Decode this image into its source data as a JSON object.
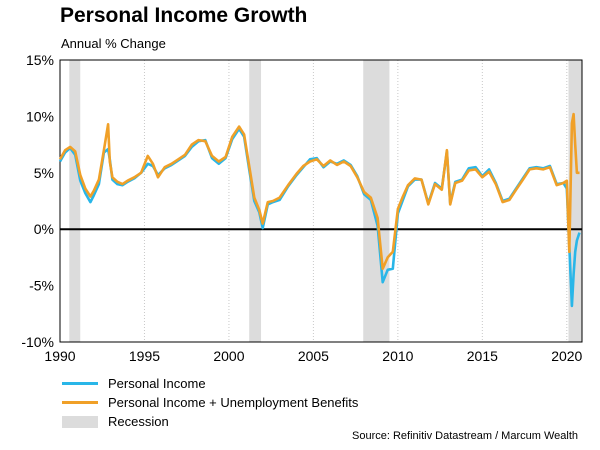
{
  "chart_data": {
    "type": "line",
    "title": "Personal Income Growth",
    "subtitle": "Annual % Change",
    "xlabel": "",
    "ylabel": "",
    "xlim": [
      1990,
      2020.9
    ],
    "ylim": [
      -10,
      15
    ],
    "yticks": [
      "15%",
      "10%",
      "5%",
      "0%",
      "-5%",
      "-10%"
    ],
    "ytick_values": [
      15,
      10,
      5,
      0,
      -5,
      -10
    ],
    "xticks": [
      "1990",
      "1995",
      "2000",
      "2005",
      "2010",
      "2015",
      "2020"
    ],
    "xtick_values": [
      1990,
      1995,
      2000,
      2005,
      2010,
      2015,
      2020
    ],
    "grid": "vertical-dotted",
    "zero_line": true,
    "recessions": [
      [
        1990.55,
        1991.2
      ],
      [
        2001.2,
        2001.9
      ],
      [
        2007.95,
        2009.5
      ],
      [
        2020.1,
        2020.9
      ]
    ],
    "series": [
      {
        "name": "Personal Income",
        "color": "#29b6e8",
        "x": [
          1990.0,
          1990.3,
          1990.6,
          1990.9,
          1991.2,
          1991.5,
          1991.8,
          1992.0,
          1992.3,
          1992.6,
          1992.85,
          1992.95,
          1993.1,
          1993.4,
          1993.7,
          1994.0,
          1994.4,
          1994.8,
          1995.2,
          1995.5,
          1995.8,
          1996.2,
          1996.6,
          1997.0,
          1997.4,
          1997.8,
          1998.2,
          1998.6,
          1999.0,
          1999.4,
          1999.8,
          2000.2,
          2000.6,
          2000.9,
          2001.2,
          2001.5,
          2001.8,
          2002.0,
          2002.3,
          2002.6,
          2003.0,
          2003.5,
          2004.0,
          2004.4,
          2004.8,
          2005.2,
          2005.6,
          2006.0,
          2006.4,
          2006.8,
          2007.2,
          2007.6,
          2008.0,
          2008.4,
          2008.8,
          2009.1,
          2009.4,
          2009.7,
          2010.0,
          2010.3,
          2010.6,
          2011.0,
          2011.4,
          2011.8,
          2012.2,
          2012.6,
          2012.9,
          2013.1,
          2013.4,
          2013.8,
          2014.2,
          2014.6,
          2015.0,
          2015.4,
          2015.8,
          2016.2,
          2016.6,
          2017.0,
          2017.4,
          2017.8,
          2018.2,
          2018.6,
          2019.0,
          2019.4,
          2019.8,
          2020.0,
          2020.15,
          2020.3,
          2020.4,
          2020.5,
          2020.6,
          2020.75
        ],
        "values": [
          6.0,
          6.8,
          7.2,
          6.6,
          4.3,
          3.2,
          2.4,
          3.0,
          4.0,
          6.8,
          7.1,
          6.2,
          4.4,
          4.0,
          3.9,
          4.2,
          4.5,
          5.0,
          5.8,
          5.6,
          4.8,
          5.4,
          5.7,
          6.1,
          6.5,
          7.3,
          7.8,
          7.9,
          6.3,
          5.8,
          6.3,
          8.0,
          8.9,
          8.2,
          5.3,
          2.5,
          1.5,
          0.1,
          2.2,
          2.4,
          2.6,
          3.8,
          4.8,
          5.5,
          6.2,
          6.3,
          5.5,
          6.0,
          5.8,
          6.1,
          5.7,
          4.7,
          3.1,
          2.6,
          0.3,
          -4.7,
          -3.6,
          -3.5,
          1.4,
          2.6,
          3.8,
          4.4,
          4.4,
          2.3,
          4.1,
          3.6,
          6.9,
          2.3,
          4.2,
          4.4,
          5.4,
          5.5,
          4.7,
          5.3,
          4.1,
          2.5,
          2.7,
          3.6,
          4.5,
          5.4,
          5.5,
          5.4,
          5.6,
          4.0,
          4.1,
          3.6,
          -1.5,
          -6.8,
          -4.0,
          -2.0,
          -1.0,
          -0.3
        ]
      },
      {
        "name": "Personal Income + Unemployment Benefits",
        "color": "#f0a028",
        "x": [
          1990.0,
          1990.3,
          1990.6,
          1990.9,
          1991.2,
          1991.5,
          1991.8,
          1992.0,
          1992.3,
          1992.6,
          1992.85,
          1992.95,
          1993.1,
          1993.4,
          1993.7,
          1994.0,
          1994.4,
          1994.8,
          1995.2,
          1995.5,
          1995.8,
          1996.2,
          1996.6,
          1997.0,
          1997.4,
          1997.8,
          1998.2,
          1998.6,
          1999.0,
          1999.4,
          1999.8,
          2000.2,
          2000.6,
          2000.9,
          2001.2,
          2001.5,
          2001.8,
          2002.0,
          2002.3,
          2002.6,
          2003.0,
          2003.5,
          2004.0,
          2004.4,
          2004.8,
          2005.2,
          2005.6,
          2006.0,
          2006.4,
          2006.8,
          2007.2,
          2007.6,
          2008.0,
          2008.4,
          2008.8,
          2009.1,
          2009.4,
          2009.7,
          2010.0,
          2010.3,
          2010.6,
          2011.0,
          2011.4,
          2011.8,
          2012.2,
          2012.6,
          2012.9,
          2013.1,
          2013.4,
          2013.8,
          2014.2,
          2014.6,
          2015.0,
          2015.4,
          2015.8,
          2016.2,
          2016.6,
          2017.0,
          2017.4,
          2017.8,
          2018.2,
          2018.6,
          2019.0,
          2019.4,
          2019.8,
          2020.0,
          2020.15,
          2020.3,
          2020.4,
          2020.5,
          2020.6,
          2020.75
        ],
        "values": [
          6.2,
          7.0,
          7.3,
          6.9,
          4.8,
          3.6,
          2.9,
          3.4,
          4.4,
          7.0,
          9.3,
          6.0,
          4.6,
          4.2,
          4.0,
          4.3,
          4.6,
          5.0,
          6.5,
          5.8,
          4.6,
          5.5,
          5.8,
          6.2,
          6.6,
          7.5,
          7.9,
          7.8,
          6.5,
          6.0,
          6.4,
          8.2,
          9.1,
          8.4,
          5.6,
          2.8,
          1.7,
          0.5,
          2.4,
          2.5,
          2.8,
          3.9,
          4.9,
          5.6,
          6.0,
          6.2,
          5.6,
          6.1,
          5.7,
          6.0,
          5.6,
          4.6,
          3.3,
          2.8,
          1.0,
          -3.5,
          -2.5,
          -2.0,
          1.8,
          2.9,
          3.9,
          4.5,
          4.4,
          2.2,
          4.0,
          3.5,
          7.0,
          2.2,
          4.1,
          4.3,
          5.2,
          5.3,
          4.6,
          5.1,
          4.0,
          2.4,
          2.6,
          3.5,
          4.4,
          5.3,
          5.4,
          5.3,
          5.5,
          3.9,
          4.1,
          4.3,
          -2.0,
          9.4,
          10.2,
          7.5,
          5.0,
          5.0
        ]
      }
    ],
    "legend": {
      "placement": "bottom-left",
      "entries": [
        "Personal Income",
        "Personal Income + Unemployment Benefits",
        "Recession"
      ],
      "colors": [
        "#29b6e8",
        "#f0a028",
        "#dcdcdc"
      ]
    },
    "source": "Source: Refinitiv Datastream / Marcum Wealth"
  }
}
